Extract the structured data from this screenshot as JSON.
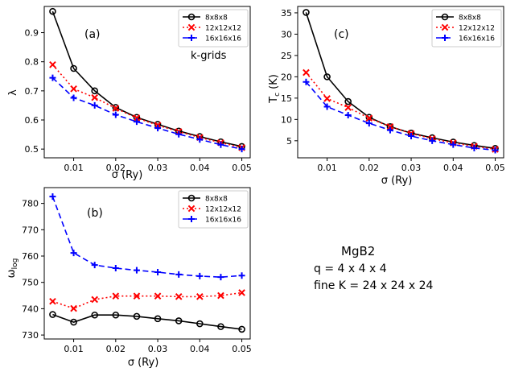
{
  "chart_data": [
    {
      "type": "line",
      "panel_label": "(a)",
      "annotation": "k-grids",
      "xlabel": "σ (Ry)",
      "ylabel": "λ",
      "xlim": [
        0.003,
        0.052
      ],
      "ylim": [
        0.47,
        0.99
      ],
      "xticks": [
        0.01,
        0.02,
        0.03,
        0.04,
        0.05
      ],
      "xtick_labels": [
        "0.01",
        "0.02",
        "0.03",
        "0.04",
        "0.05"
      ],
      "yticks": [
        0.5,
        0.6,
        0.7,
        0.8,
        0.9
      ],
      "ytick_labels": [
        "0.5",
        "0.6",
        "0.7",
        "0.8",
        "0.9"
      ],
      "x": [
        0.005,
        0.01,
        0.015,
        0.02,
        0.025,
        0.03,
        0.035,
        0.04,
        0.045,
        0.05
      ],
      "legend_position": "top-right",
      "series": [
        {
          "name": "8x8x8",
          "values": [
            0.973,
            0.777,
            0.7,
            0.643,
            0.609,
            0.585,
            0.562,
            0.543,
            0.525,
            0.509
          ]
        },
        {
          "name": "12x12x12",
          "values": [
            0.79,
            0.707,
            0.677,
            0.64,
            0.607,
            0.582,
            0.56,
            0.54,
            0.522,
            0.505
          ]
        },
        {
          "name": "16x16x16",
          "values": [
            0.745,
            0.676,
            0.65,
            0.618,
            0.594,
            0.572,
            0.551,
            0.533,
            0.515,
            0.5
          ]
        }
      ]
    },
    {
      "type": "line",
      "panel_label": "(c)",
      "xlabel": "σ (Ry)",
      "ylabel": "T_c (K)",
      "xlim": [
        0.003,
        0.052
      ],
      "ylim": [
        1.0,
        36.5
      ],
      "xticks": [
        0.01,
        0.02,
        0.03,
        0.04,
        0.05
      ],
      "xtick_labels": [
        "0.01",
        "0.02",
        "0.03",
        "0.04",
        "0.05"
      ],
      "yticks": [
        5,
        10,
        15,
        20,
        25,
        30,
        35
      ],
      "ytick_labels": [
        "5",
        "10",
        "15",
        "20",
        "25",
        "30",
        "35"
      ],
      "x": [
        0.005,
        0.01,
        0.015,
        0.02,
        0.025,
        0.03,
        0.035,
        0.04,
        0.045,
        0.05
      ],
      "legend_position": "top-right",
      "series": [
        {
          "name": "8x8x8",
          "values": [
            35.1,
            20.0,
            14.2,
            10.5,
            8.3,
            6.8,
            5.7,
            4.7,
            3.9,
            3.2
          ]
        },
        {
          "name": "12x12x12",
          "values": [
            21.0,
            14.9,
            12.8,
            10.3,
            8.3,
            6.7,
            5.5,
            4.5,
            3.7,
            3.0
          ]
        },
        {
          "name": "16x16x16",
          "values": [
            18.8,
            13.0,
            11.0,
            9.1,
            7.5,
            6.1,
            5.0,
            4.1,
            3.3,
            2.8
          ]
        }
      ]
    },
    {
      "type": "line",
      "panel_label": "(b)",
      "xlabel": "σ (Ry)",
      "ylabel": "ω_log",
      "xlim": [
        0.003,
        0.052
      ],
      "ylim": [
        728.5,
        786.0
      ],
      "xticks": [
        0.01,
        0.02,
        0.03,
        0.04,
        0.05
      ],
      "xtick_labels": [
        "0.01",
        "0.02",
        "0.03",
        "0.04",
        "0.05"
      ],
      "yticks": [
        730,
        740,
        750,
        760,
        770,
        780
      ],
      "ytick_labels": [
        "730",
        "740",
        "750",
        "760",
        "770",
        "780"
      ],
      "x": [
        0.005,
        0.01,
        0.015,
        0.02,
        0.025,
        0.03,
        0.035,
        0.04,
        0.045,
        0.05
      ],
      "legend_position": "top-right",
      "series": [
        {
          "name": "8x8x8",
          "values": [
            737.8,
            734.9,
            737.6,
            737.6,
            737.1,
            736.2,
            735.4,
            734.3,
            733.2,
            732.2
          ]
        },
        {
          "name": "12x12x12",
          "values": [
            742.8,
            740.1,
            743.5,
            744.8,
            744.8,
            744.8,
            744.6,
            744.6,
            745.0,
            746.1
          ]
        },
        {
          "name": "16x16x16",
          "values": [
            782.6,
            761.2,
            756.6,
            755.4,
            754.6,
            753.9,
            753.0,
            752.4,
            752.0,
            752.6
          ]
        }
      ]
    }
  ],
  "series_styles": [
    {
      "color": "#000000",
      "dash": "",
      "marker": "circle"
    },
    {
      "color": "#ff0000",
      "dash": "2,3",
      "marker": "x"
    },
    {
      "color": "#0000ff",
      "dash": "7,4",
      "marker": "plus"
    }
  ],
  "notes": {
    "title": "MgB2",
    "line1": "q = 4 x 4 x 4",
    "line2": "fine K = 24 x 24 x 24"
  }
}
